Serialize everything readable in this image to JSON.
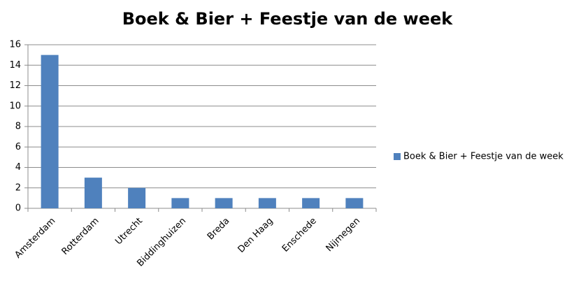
{
  "chart_data": {
    "type": "bar",
    "title": "Boek & Bier + Feestje van de week",
    "categories": [
      "Amsterdam",
      "Rotterdam",
      "Utrecht",
      "Biddinghuizen",
      "Breda",
      "Den Haag",
      "Enschede",
      "Nijmegen"
    ],
    "series": [
      {
        "name": "Boek & Bier + Feestje van de week",
        "color": "#4f81bd",
        "values": [
          15,
          3,
          2,
          1,
          1,
          1,
          1,
          1
        ]
      }
    ],
    "ylim": [
      0,
      16
    ],
    "yticks": [
      0,
      2,
      4,
      6,
      8,
      10,
      12,
      14,
      16
    ],
    "grid": true,
    "legend": "right"
  }
}
